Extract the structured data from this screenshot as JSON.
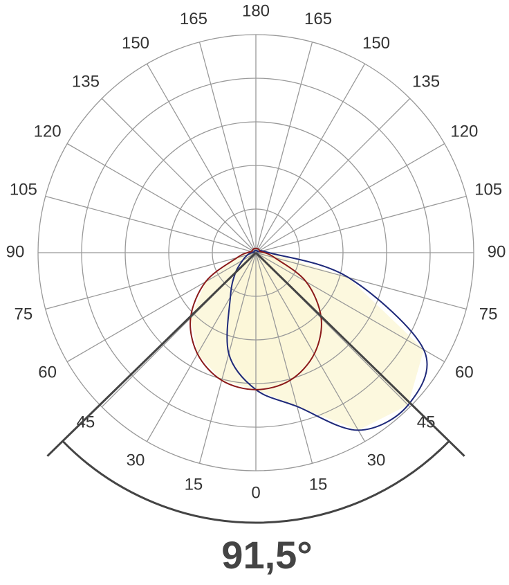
{
  "chart_data": {
    "type": "polar",
    "angles": [
      -180,
      -165,
      -150,
      -135,
      -120,
      -105,
      -90,
      -75,
      -60,
      -45,
      -30,
      -15,
      0,
      15,
      30,
      45,
      60,
      75,
      90,
      105,
      120,
      135,
      150,
      165,
      180
    ],
    "series": [
      {
        "color": "#1f2a7a",
        "values": [
          0.05,
          0.05,
          0.05,
          0.05,
          0.05,
          0.05,
          0.1,
          0.2,
          0.35,
          0.67,
          1.17,
          2.4,
          3.14,
          3.65,
          4.7,
          4.94,
          4.45,
          2.2,
          0.3,
          0.1,
          0.05,
          0.05,
          0.05,
          0.05,
          0.05
        ]
      },
      {
        "color": "#8b1a1a",
        "values": [
          0.1,
          0.1,
          0.1,
          0.1,
          0.1,
          0.1,
          0.2,
          0.45,
          1.33,
          2.12,
          2.68,
          3.03,
          3.14,
          3.03,
          2.68,
          2.12,
          1.33,
          0.45,
          0.2,
          0.1,
          0.1,
          0.1,
          0.1,
          0.1,
          0.1
        ]
      }
    ],
    "rlim": [
      0,
      5
    ],
    "rticks": [
      1,
      2,
      3,
      4,
      5
    ],
    "angle_ticks": [
      {
        "value": -165,
        "label": "165"
      },
      {
        "value": -150,
        "label": "150"
      },
      {
        "value": -135,
        "label": "135"
      },
      {
        "value": -120,
        "label": "120"
      },
      {
        "value": -105,
        "label": "105"
      },
      {
        "value": -90,
        "label": "90"
      },
      {
        "value": -75,
        "label": "75"
      },
      {
        "value": -60,
        "label": "60"
      },
      {
        "value": -45,
        "label": "45"
      },
      {
        "value": -30,
        "label": "30"
      },
      {
        "value": -15,
        "label": "15"
      },
      0,
      15,
      30,
      45,
      60,
      75,
      90,
      105,
      120,
      135,
      150,
      165,
      180
    ],
    "fill": "#fcf7d8",
    "beam_angle": {
      "value": 91.5,
      "label": "91,5°"
    }
  }
}
